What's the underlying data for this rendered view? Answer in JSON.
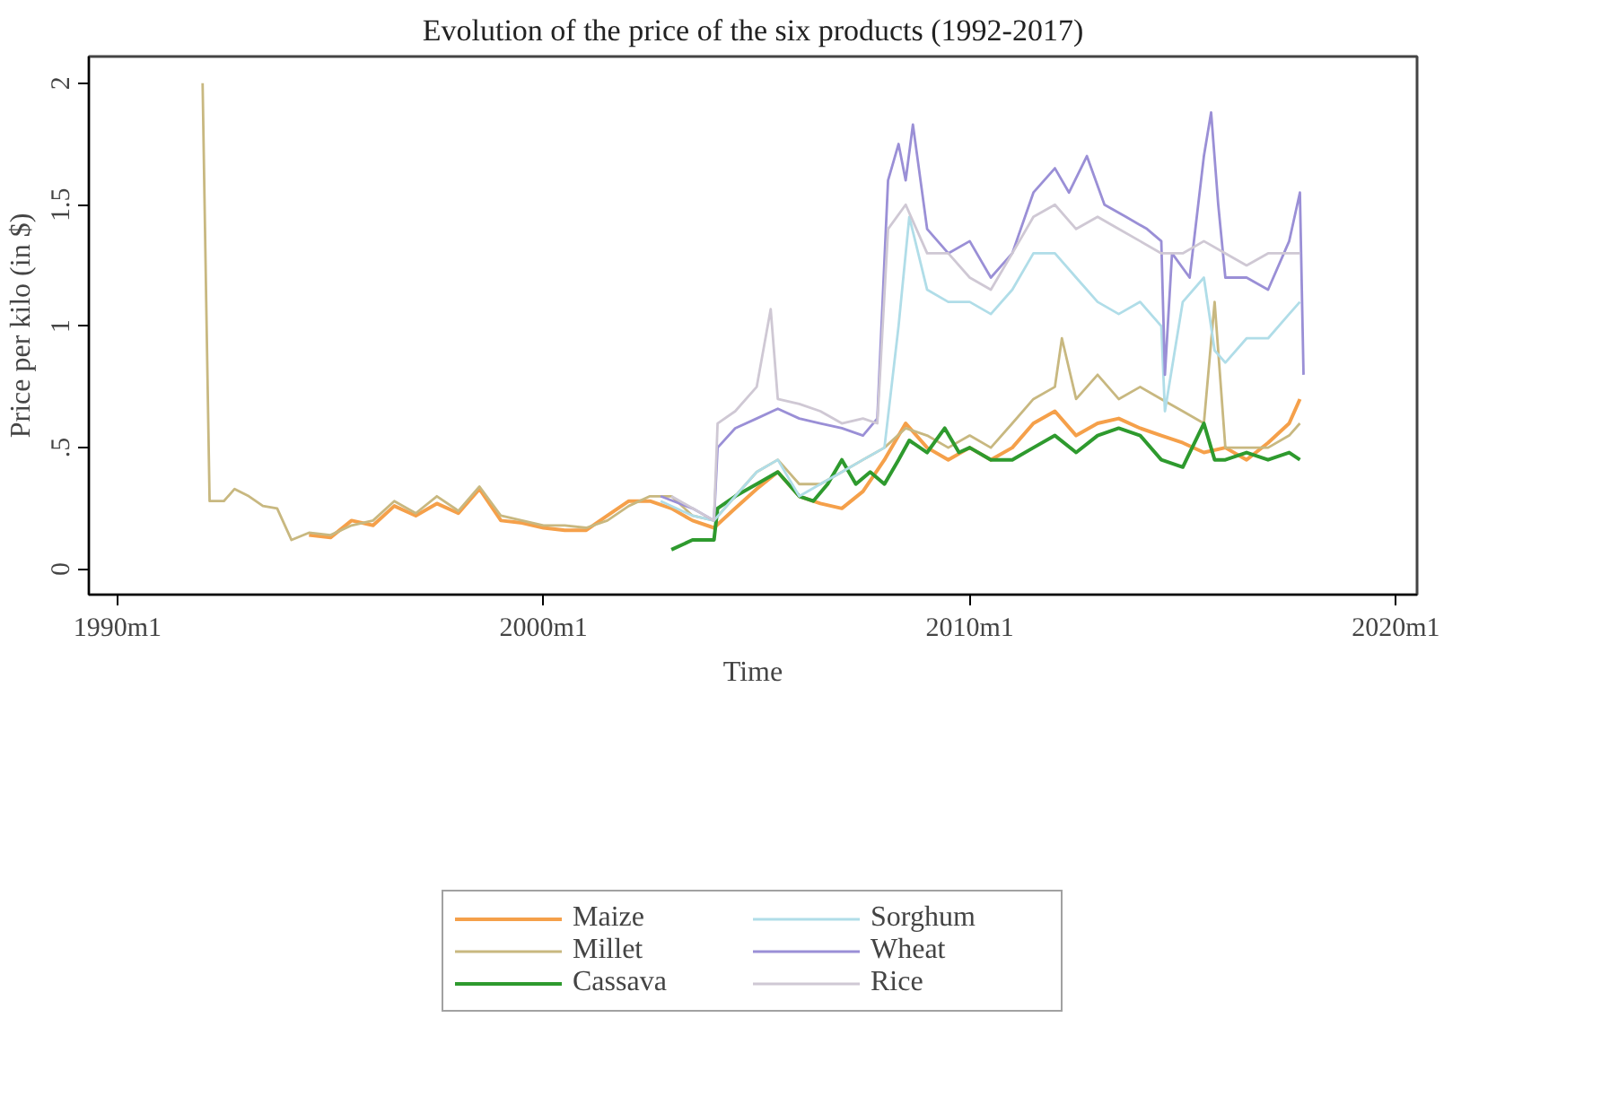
{
  "chart_data": {
    "type": "line",
    "title": "Evolution of the price of the six products (1992-2017)",
    "xlabel": "Time",
    "ylabel": "Price per kilo (in $)",
    "xlim": [
      "1989-05",
      "2020-07"
    ],
    "ylim": [
      -0.105,
      2.11
    ],
    "xticks": [
      {
        "value": "1990-01",
        "label": "1990m1"
      },
      {
        "value": "2000-01",
        "label": "2000m1"
      },
      {
        "value": "2010-01",
        "label": "2010m1"
      },
      {
        "value": "2020-01",
        "label": "2020m1"
      }
    ],
    "yticks": [
      0,
      {
        "value": 0.5,
        "label": ".5"
      },
      1,
      1.5,
      2
    ],
    "grid": false,
    "legend": "bottom",
    "line_style": "solid",
    "marker": "none",
    "series": [
      {
        "name": "Maize",
        "color": "#f5a04a",
        "x": [
          "1994-07",
          "1995-01",
          "1995-07",
          "1996-01",
          "1996-07",
          "1997-01",
          "1997-07",
          "1998-01",
          "1998-07",
          "1999-01",
          "1999-07",
          "2000-01",
          "2000-07",
          "2001-01",
          "2001-07",
          "2002-01",
          "2002-07",
          "2003-01",
          "2003-07",
          "2004-01",
          "2004-07",
          "2005-01",
          "2005-07",
          "2006-01",
          "2006-07",
          "2007-01",
          "2007-07",
          "2008-01",
          "2008-07",
          "2009-01",
          "2009-07",
          "2010-01",
          "2010-07",
          "2011-01",
          "2011-07",
          "2012-01",
          "2012-07",
          "2013-01",
          "2013-07",
          "2014-01",
          "2014-07",
          "2015-01",
          "2015-07",
          "2016-01",
          "2016-07",
          "2017-01",
          "2017-07",
          "2017-10"
        ],
        "values": [
          0.14,
          0.13,
          0.2,
          0.18,
          0.26,
          0.22,
          0.27,
          0.23,
          0.33,
          0.2,
          0.19,
          0.17,
          0.16,
          0.16,
          0.22,
          0.28,
          0.28,
          0.25,
          0.2,
          0.17,
          0.25,
          0.33,
          0.4,
          0.3,
          0.27,
          0.25,
          0.32,
          0.45,
          0.6,
          0.5,
          0.45,
          0.5,
          0.45,
          0.5,
          0.6,
          0.65,
          0.55,
          0.6,
          0.62,
          0.58,
          0.55,
          0.52,
          0.48,
          0.5,
          0.45,
          0.52,
          0.6,
          0.7
        ]
      },
      {
        "name": "Millet",
        "color": "#c8b880",
        "x": [
          "1992-01",
          "1992-02",
          "1992-03",
          "1992-07",
          "1992-10",
          "1993-02",
          "1993-06",
          "1993-10",
          "1994-02",
          "1994-07",
          "1995-01",
          "1995-07",
          "1996-01",
          "1996-07",
          "1997-01",
          "1997-07",
          "1998-01",
          "1998-07",
          "1999-01",
          "1999-07",
          "2000-01",
          "2000-07",
          "2001-01",
          "2001-07",
          "2002-01",
          "2002-07",
          "2003-01",
          "2003-07",
          "2004-01",
          "2004-07",
          "2005-01",
          "2005-07",
          "2006-01",
          "2006-07",
          "2007-01",
          "2007-07",
          "2008-01",
          "2008-07",
          "2009-01",
          "2009-07",
          "2010-01",
          "2010-07",
          "2011-01",
          "2011-07",
          "2012-01",
          "2012-03",
          "2012-07",
          "2013-01",
          "2013-07",
          "2014-01",
          "2014-07",
          "2015-01",
          "2015-07",
          "2015-10",
          "2016-01",
          "2016-07",
          "2017-01",
          "2017-07",
          "2017-10"
        ],
        "values": [
          2.0,
          1.1,
          0.28,
          0.28,
          0.33,
          0.3,
          0.26,
          0.25,
          0.12,
          0.15,
          0.14,
          0.18,
          0.2,
          0.28,
          0.23,
          0.3,
          0.24,
          0.34,
          0.22,
          0.2,
          0.18,
          0.18,
          0.17,
          0.2,
          0.26,
          0.3,
          0.3,
          0.22,
          0.2,
          0.3,
          0.4,
          0.45,
          0.35,
          0.35,
          0.4,
          0.45,
          0.5,
          0.58,
          0.55,
          0.5,
          0.55,
          0.5,
          0.6,
          0.7,
          0.75,
          0.95,
          0.7,
          0.8,
          0.7,
          0.75,
          0.7,
          0.65,
          0.6,
          1.1,
          0.5,
          0.5,
          0.5,
          0.55,
          0.6
        ]
      },
      {
        "name": "Cassava",
        "color": "#2e9a2e",
        "x": [
          "2003-01",
          "2003-07",
          "2004-01",
          "2004-02",
          "2004-07",
          "2005-01",
          "2005-07",
          "2005-10",
          "2006-01",
          "2006-05",
          "2006-09",
          "2007-01",
          "2007-05",
          "2007-09",
          "2008-01",
          "2008-05",
          "2008-08",
          "2009-01",
          "2009-06",
          "2009-10",
          "2010-01",
          "2010-07",
          "2011-01",
          "2011-07",
          "2012-01",
          "2012-07",
          "2013-01",
          "2013-07",
          "2014-01",
          "2014-07",
          "2015-01",
          "2015-07",
          "2015-10",
          "2016-01",
          "2016-07",
          "2017-01",
          "2017-07",
          "2017-10"
        ],
        "values": [
          0.08,
          0.12,
          0.12,
          0.25,
          0.3,
          0.35,
          0.4,
          0.35,
          0.3,
          0.28,
          0.35,
          0.45,
          0.35,
          0.4,
          0.35,
          0.45,
          0.53,
          0.48,
          0.58,
          0.48,
          0.5,
          0.45,
          0.45,
          0.5,
          0.55,
          0.48,
          0.55,
          0.58,
          0.55,
          0.45,
          0.42,
          0.6,
          0.45,
          0.45,
          0.48,
          0.45,
          0.48,
          0.45
        ]
      },
      {
        "name": "Sorghum",
        "color": "#b0dde8",
        "x": [
          "2002-10",
          "2003-07",
          "2004-01",
          "2004-07",
          "2005-01",
          "2005-07",
          "2006-01",
          "2006-07",
          "2007-01",
          "2007-07",
          "2008-01",
          "2008-05",
          "2008-08",
          "2009-01",
          "2009-07",
          "2010-01",
          "2010-07",
          "2011-01",
          "2011-07",
          "2012-01",
          "2012-07",
          "2013-01",
          "2013-07",
          "2014-01",
          "2014-07",
          "2014-08",
          "2015-01",
          "2015-07",
          "2015-10",
          "2016-01",
          "2016-07",
          "2017-01",
          "2017-07",
          "2017-10"
        ],
        "values": [
          0.28,
          0.22,
          0.2,
          0.3,
          0.4,
          0.45,
          0.3,
          0.35,
          0.4,
          0.45,
          0.5,
          1.0,
          1.45,
          1.15,
          1.1,
          1.1,
          1.05,
          1.15,
          1.3,
          1.3,
          1.2,
          1.1,
          1.05,
          1.1,
          1.0,
          0.65,
          1.1,
          1.2,
          0.9,
          0.85,
          0.95,
          0.95,
          1.05,
          1.1
        ]
      },
      {
        "name": "Wheat",
        "color": "#9a8fd6",
        "x": [
          "2002-10",
          "2003-07",
          "2004-01",
          "2004-02",
          "2004-07",
          "2005-01",
          "2005-07",
          "2006-01",
          "2006-07",
          "2007-01",
          "2007-07",
          "2007-11",
          "2008-02",
          "2008-05",
          "2008-07",
          "2008-09",
          "2009-01",
          "2009-07",
          "2010-01",
          "2010-07",
          "2011-01",
          "2011-07",
          "2012-01",
          "2012-05",
          "2012-10",
          "2013-03",
          "2013-09",
          "2014-03",
          "2014-07",
          "2014-08",
          "2014-10",
          "2015-03",
          "2015-07",
          "2015-09",
          "2015-11",
          "2016-01",
          "2016-07",
          "2017-01",
          "2017-07",
          "2017-10",
          "2017-11"
        ],
        "values": [
          0.3,
          0.25,
          0.2,
          0.5,
          0.58,
          0.62,
          0.66,
          0.62,
          0.6,
          0.58,
          0.55,
          0.62,
          1.6,
          1.75,
          1.6,
          1.83,
          1.4,
          1.3,
          1.35,
          1.2,
          1.3,
          1.55,
          1.65,
          1.55,
          1.7,
          1.5,
          1.45,
          1.4,
          1.35,
          0.8,
          1.3,
          1.2,
          1.7,
          1.88,
          1.5,
          1.2,
          1.2,
          1.15,
          1.35,
          1.55,
          0.8
        ]
      },
      {
        "name": "Rice",
        "color": "#cfc8d4",
        "x": [
          "2003-01",
          "2004-01",
          "2004-02",
          "2004-07",
          "2005-01",
          "2005-05",
          "2005-07",
          "2006-01",
          "2006-07",
          "2007-01",
          "2007-07",
          "2007-11",
          "2008-02",
          "2008-07",
          "2009-01",
          "2009-07",
          "2010-01",
          "2010-07",
          "2011-01",
          "2011-07",
          "2012-01",
          "2012-07",
          "2013-01",
          "2013-07",
          "2014-01",
          "2014-07",
          "2015-01",
          "2015-07",
          "2016-01",
          "2016-07",
          "2017-01",
          "2017-07",
          "2017-10"
        ],
        "values": [
          0.3,
          0.2,
          0.6,
          0.65,
          0.75,
          1.07,
          0.7,
          0.68,
          0.65,
          0.6,
          0.62,
          0.6,
          1.4,
          1.5,
          1.3,
          1.3,
          1.2,
          1.15,
          1.3,
          1.45,
          1.5,
          1.4,
          1.45,
          1.4,
          1.35,
          1.3,
          1.3,
          1.35,
          1.3,
          1.25,
          1.3,
          1.3,
          1.3
        ]
      }
    ]
  }
}
